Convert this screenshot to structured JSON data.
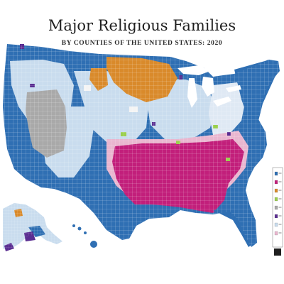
{
  "header": {
    "title": "Major Religious Families",
    "subtitle": "BY COUNTIES OF THE UNITED STATES: 2020"
  },
  "colors": {
    "catholic": "#2f6fb3",
    "catholic_light": "#c9dcee",
    "baptist": "#c21f7b",
    "baptist_light": "#e9b6cf",
    "lutheran": "#d98a2b",
    "mormon": "#a9a9a9",
    "methodist": "#9bcf4f",
    "pentecostal": "#5a2d91",
    "border": "#ffffff"
  },
  "legend": {
    "swatches": [
      "catholic",
      "baptist",
      "lutheran",
      "methodist",
      "mormon",
      "pentecostal",
      "catholic_light",
      "baptist_light"
    ]
  }
}
